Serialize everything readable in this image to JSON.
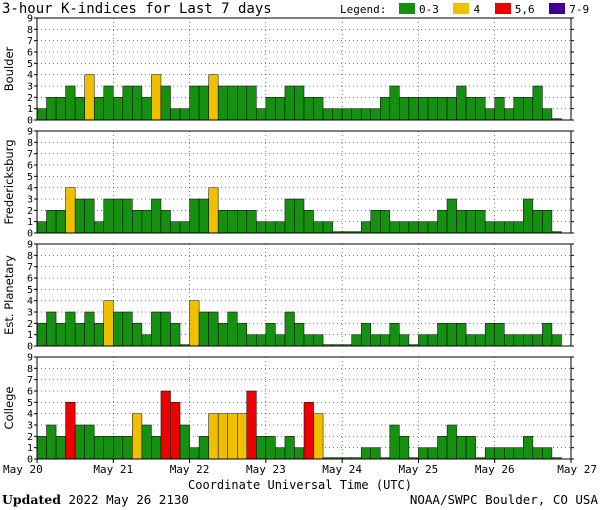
{
  "chart_data": {
    "type": "bar",
    "title": "3-hour K-indices for Last 7 days",
    "legend": {
      "label": "Legend:",
      "items": [
        {
          "label": "0-3",
          "color": "#159010"
        },
        {
          "label": "4",
          "color": "#f0c000"
        },
        {
          "label": "5,6",
          "color": "#ee0000"
        },
        {
          "label": "7-9",
          "color": "#3c0097"
        }
      ]
    },
    "xlabel": "Coordinate Universal Time (UTC)",
    "x_ticks": [
      "May 20",
      "May 21",
      "May 22",
      "May 23",
      "May 24",
      "May 25",
      "May 26",
      "May 27"
    ],
    "y_ticks": [
      "0",
      "1",
      "2",
      "3",
      "4",
      "5",
      "6",
      "7",
      "8",
      "9"
    ],
    "ylim": [
      0,
      9
    ],
    "bins_per_day": 8,
    "panels": [
      {
        "name": "Boulder",
        "values": [
          1,
          2,
          2,
          3,
          2,
          4,
          2,
          3,
          2,
          3,
          3,
          2,
          4,
          3,
          1,
          1,
          3,
          3,
          4,
          3,
          3,
          3,
          3,
          1,
          2,
          2,
          3,
          3,
          2,
          2,
          1,
          1,
          1,
          1,
          1,
          1,
          2,
          3,
          2,
          2,
          2,
          2,
          2,
          2,
          3,
          2,
          2,
          1,
          2,
          1,
          2,
          2,
          3,
          1,
          0
        ]
      },
      {
        "name": "Fredericksburg",
        "values": [
          1,
          2,
          2,
          4,
          3,
          3,
          1,
          3,
          3,
          3,
          2,
          2,
          3,
          2,
          1,
          1,
          3,
          3,
          4,
          2,
          2,
          2,
          2,
          1,
          1,
          1,
          3,
          3,
          2,
          1,
          1,
          0,
          0,
          0,
          1,
          2,
          2,
          1,
          1,
          1,
          1,
          1,
          2,
          3,
          2,
          2,
          2,
          1,
          1,
          1,
          1,
          3,
          2,
          2,
          0
        ]
      },
      {
        "name": "Est. Planetary",
        "values": [
          2,
          3,
          2,
          3,
          2,
          3,
          2,
          4,
          3,
          3,
          2,
          1,
          3,
          3,
          2,
          0,
          4,
          3,
          3,
          2,
          3,
          2,
          1,
          1,
          2,
          1,
          3,
          2,
          1,
          1,
          0,
          0,
          0,
          1,
          2,
          1,
          1,
          2,
          1,
          0,
          1,
          1,
          2,
          2,
          2,
          1,
          1,
          2,
          2,
          1,
          1,
          1,
          1,
          2,
          1
        ]
      },
      {
        "name": "College",
        "values": [
          2,
          3,
          2,
          5,
          3,
          3,
          2,
          2,
          2,
          2,
          4,
          3,
          2,
          6,
          5,
          3,
          1,
          2,
          4,
          4,
          4,
          4,
          6,
          2,
          2,
          1,
          2,
          1,
          5,
          4,
          0,
          0,
          0,
          0,
          1,
          1,
          0,
          3,
          2,
          0,
          1,
          1,
          2,
          3,
          2,
          2,
          0,
          1,
          1,
          1,
          1,
          2,
          1,
          1,
          0
        ]
      }
    ]
  },
  "footer": {
    "updated_label": "Updated",
    "updated_value": "2022 May 26 2130",
    "credit": "NOAA/SWPC Boulder, CO USA"
  }
}
